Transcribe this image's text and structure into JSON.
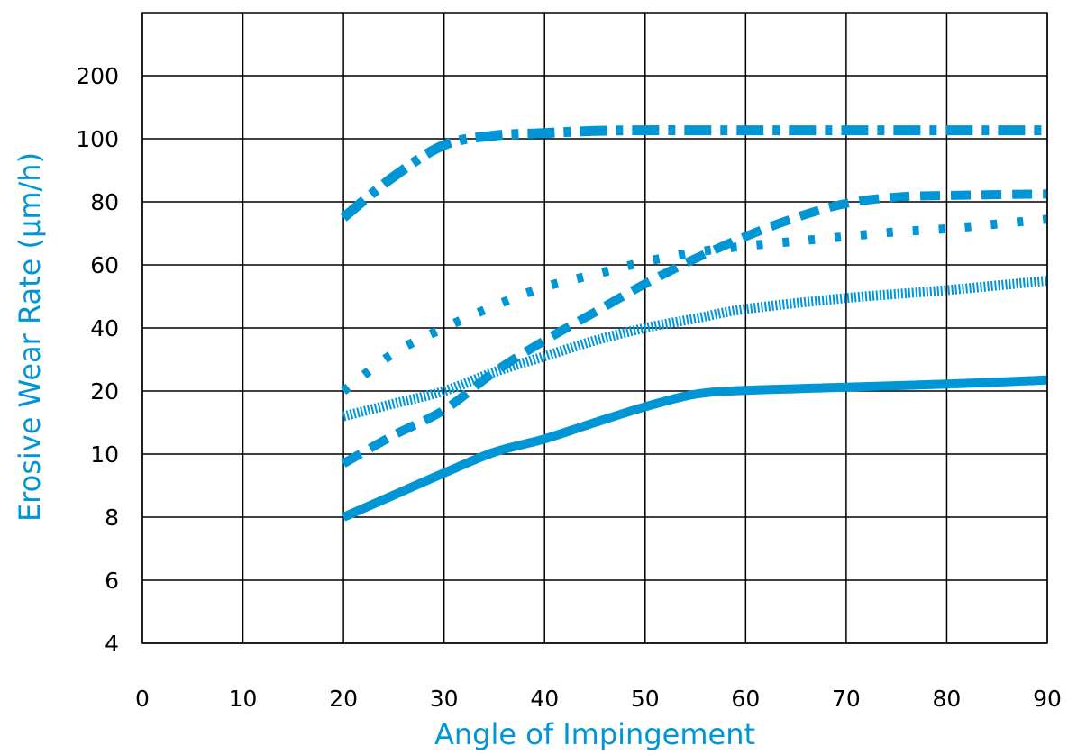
{
  "chart_data": {
    "type": "line",
    "title": "",
    "xlabel": "Angle of Impingement",
    "ylabel": "Erosive Wear Rate (µm/h)",
    "xlim": [
      0,
      90
    ],
    "x_ticks": [
      "0",
      "10",
      "20",
      "30",
      "40",
      "50",
      "60",
      "70",
      "80",
      "90"
    ],
    "y_ticks": [
      "4",
      "6",
      "8",
      "10",
      "20",
      "40",
      "60",
      "80",
      "100",
      "200"
    ],
    "y_scale": "categorical-gridlines (non-linear: 4,6,8,10,20,40,60,80,100,200 evenly spaced)",
    "grid": true,
    "legend": "none",
    "colors": {
      "series": "#0096d6",
      "axis_title": "#0096d6",
      "grid": "#000000"
    },
    "series": [
      {
        "style": "dash-dot",
        "x": [
          20,
          25,
          30,
          35,
          40,
          45,
          50,
          55,
          60,
          70,
          80,
          90
        ],
        "y": [
          75,
          88,
          98,
          105,
          109,
          112.5,
          113.5,
          113.5,
          113.5,
          113.5,
          113.5,
          113.5
        ]
      },
      {
        "style": "dashed",
        "x": [
          20,
          25,
          30,
          35,
          40,
          45,
          50,
          55,
          60,
          65,
          70,
          75,
          80,
          90
        ],
        "y": [
          9.7,
          13,
          17,
          26,
          36,
          45,
          54,
          62,
          69,
          75,
          79.5,
          81.5,
          82,
          82.5
        ]
      },
      {
        "style": "dotted",
        "x": [
          20,
          25,
          30,
          35,
          40,
          45,
          50,
          55,
          60,
          65,
          70,
          75,
          80,
          90
        ],
        "y": [
          20,
          32,
          40,
          47,
          53,
          57,
          61,
          64,
          66,
          67.5,
          69,
          70.5,
          71.5,
          74.5
        ]
      },
      {
        "style": "fine-dotted",
        "x": [
          20,
          25,
          30,
          35,
          40,
          45,
          50,
          55,
          60,
          70,
          80,
          90
        ],
        "y": [
          16,
          18,
          20,
          26,
          31,
          36,
          40,
          43,
          46,
          49.5,
          52,
          55
        ]
      },
      {
        "style": "solid",
        "x": [
          20,
          25,
          30,
          35,
          40,
          45,
          50,
          55,
          60,
          70,
          80,
          90
        ],
        "y": [
          8,
          8.7,
          9.4,
          10.3,
          12.4,
          15,
          17.5,
          19.5,
          20.2,
          21.2,
          22.2,
          23.5
        ]
      }
    ]
  }
}
